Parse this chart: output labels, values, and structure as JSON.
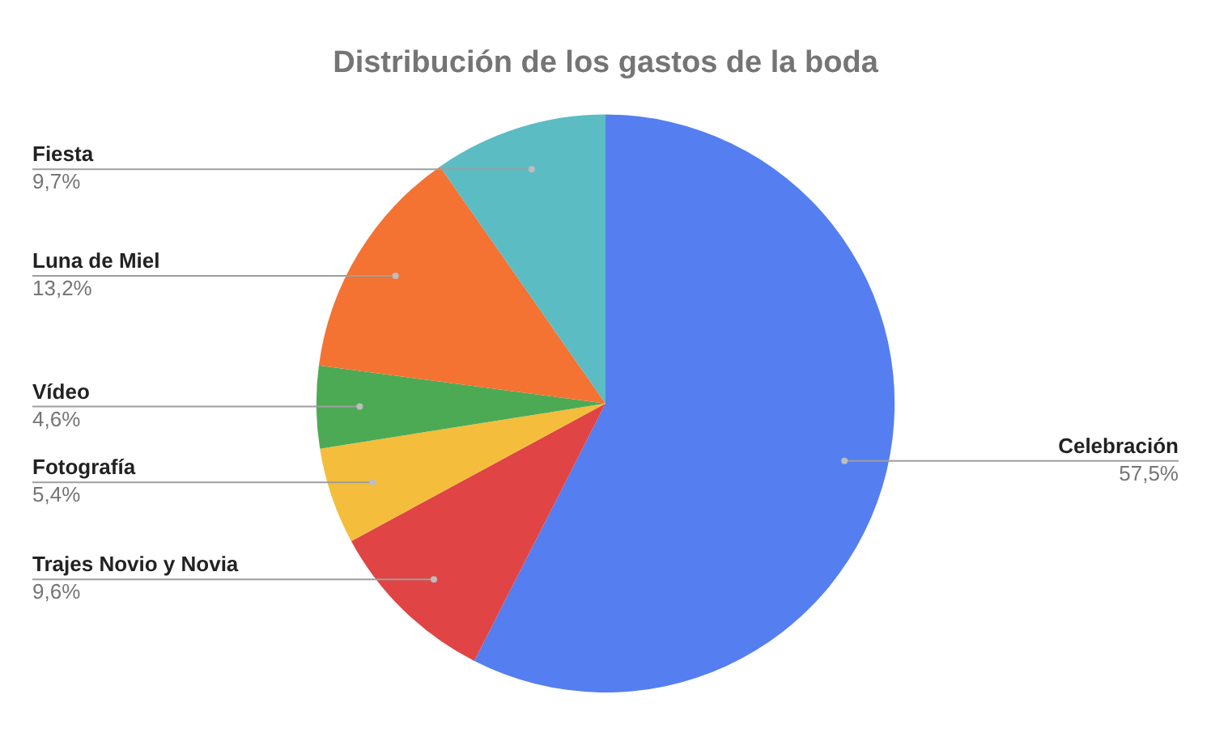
{
  "chart_data": {
    "type": "pie",
    "title": "Distribución de los gastos de la boda",
    "categories": [
      "Celebración",
      "Trajes Novio y Novia",
      "Fotografía",
      "Vídeo",
      "Luna de Miel",
      "Fiesta"
    ],
    "values": [
      57.5,
      9.6,
      5.4,
      4.6,
      13.2,
      9.7
    ],
    "colors": [
      "#557ef0",
      "#e04444",
      "#f4bd3c",
      "#4caa55",
      "#f47232",
      "#5bbcc4"
    ],
    "value_labels": [
      "57,5%",
      "9,6%",
      "5,4%",
      "4,6%",
      "13,2%",
      "9,7%"
    ],
    "legend": false
  }
}
